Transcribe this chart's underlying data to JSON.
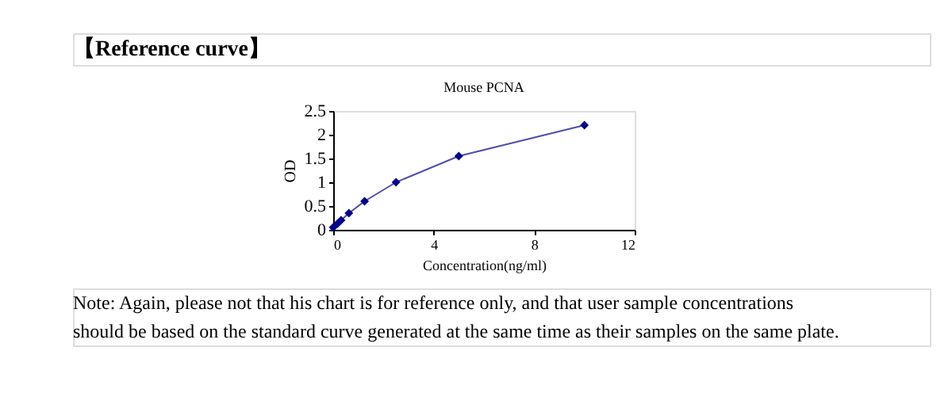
{
  "chart_data": {
    "type": "line",
    "title": "【Reference curve】",
    "subtitle": "Mouse PCNA",
    "xlabel": "Concentration(ng/ml)",
    "ylabel": "OD",
    "x": [
      0,
      0.156,
      0.312,
      0.625,
      1.25,
      2.5,
      5,
      10
    ],
    "series": [
      {
        "color": "#00008b",
        "values": [
          0.05,
          0.12,
          0.2,
          0.35,
          0.6,
          1.0,
          1.55,
          2.2
        ]
      }
    ],
    "xlim": [
      0,
      12
    ],
    "xticks": [
      0,
      4,
      8,
      12
    ],
    "ylim": [
      0,
      2.5
    ],
    "yticks": [
      0,
      0.5,
      1,
      1.5,
      2,
      2.5
    ],
    "grid": false,
    "marker": "diamond",
    "line_style": "solid",
    "annotations": [
      "Note: Again, please not that his chart is for reference only, and that user sample concentrations should be based on the standard curve generated at the same time as their samples on the same plate."
    ]
  }
}
